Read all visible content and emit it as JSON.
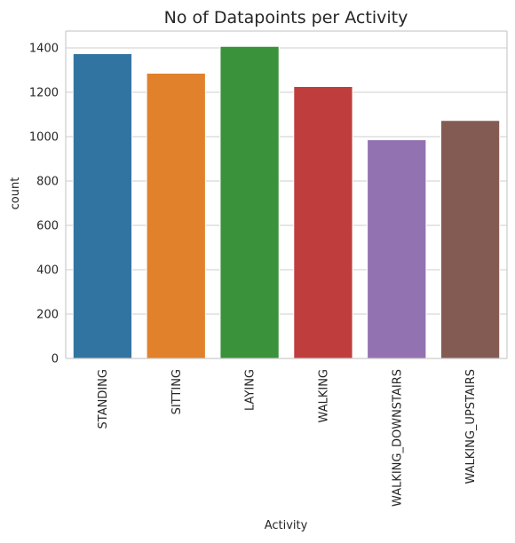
{
  "chart_data": {
    "type": "bar",
    "title": "No of Datapoints per Activity",
    "xlabel": "Activity",
    "ylabel": "count",
    "categories": [
      "STANDING",
      "SITTING",
      "LAYING",
      "WALKING",
      "WALKING_DOWNSTAIRS",
      "WALKING_UPSTAIRS"
    ],
    "values": [
      1374,
      1286,
      1407,
      1226,
      986,
      1073
    ],
    "colors": [
      "#3274a1",
      "#e1812c",
      "#3a923a",
      "#c03d3e",
      "#9372b2",
      "#845b53"
    ],
    "ylim": [
      0,
      1476
    ],
    "yticks": [
      0,
      200,
      400,
      600,
      800,
      1000,
      1200,
      1400
    ],
    "ytick_labels": [
      "0",
      "200",
      "400",
      "600",
      "800",
      "1000",
      "1200",
      "1400"
    ],
    "grid": true,
    "background": "#ffffff",
    "grid_color": "#cccccc",
    "spine_color": "#cccccc"
  }
}
